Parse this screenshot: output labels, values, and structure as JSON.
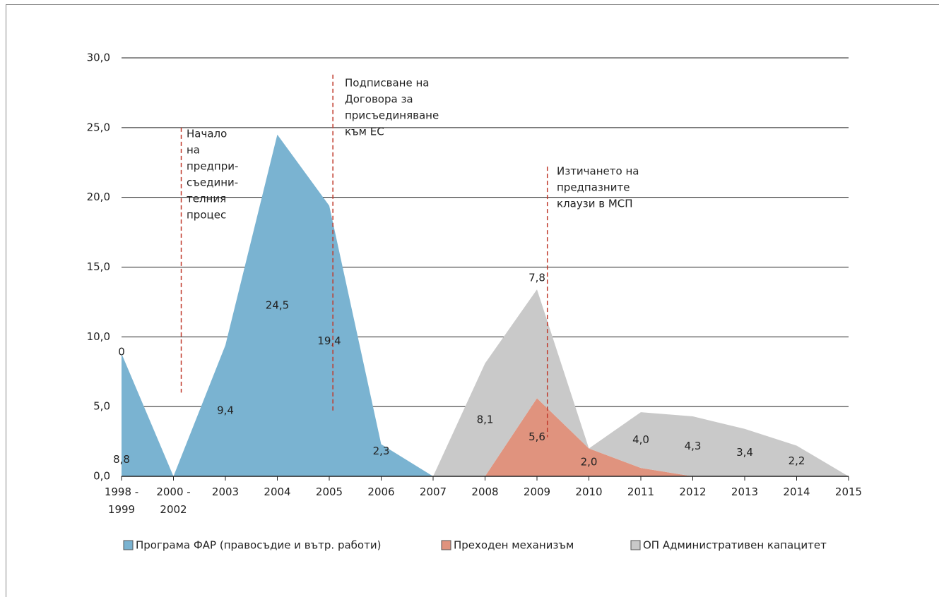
{
  "chart_data": {
    "type": "stacked_area",
    "categories": [
      "1998 -\n1999",
      "2000 -\n2002",
      "2003",
      "2004",
      "2005",
      "2006",
      "2007",
      "2008",
      "2009",
      "2010",
      "2011",
      "2012",
      "2013",
      "2014",
      "2015"
    ],
    "series": [
      {
        "name": "Програма ФАР (правосъдие и вътр. работи)",
        "color": "#7ab3d1",
        "values": [
          8.8,
          0,
          9.4,
          24.5,
          19.4,
          2.3,
          0,
          0,
          0,
          0,
          0,
          0,
          0,
          0,
          0
        ],
        "value_labels": [
          "8,8",
          null,
          "9,4",
          "24,5",
          "19,4",
          "2,3",
          null,
          null,
          null,
          null,
          null,
          null,
          null,
          null,
          null
        ]
      },
      {
        "name": "Преходен механизъм",
        "color": "#e0937e",
        "values": [
          0,
          0,
          0,
          0,
          0,
          0,
          0,
          0,
          5.6,
          2.0,
          0.6,
          0,
          0,
          0,
          0
        ],
        "value_labels": [
          "0",
          null,
          null,
          null,
          null,
          null,
          null,
          null,
          "5,6",
          "2,0",
          null,
          null,
          null,
          null,
          null
        ]
      },
      {
        "name": "ОП Административен капацитет",
        "color": "#c9c9c9",
        "values": [
          0,
          0,
          0,
          0,
          0,
          0,
          0,
          8.1,
          7.8,
          0,
          4.0,
          4.3,
          3.4,
          2.2,
          0
        ],
        "value_labels": [
          null,
          null,
          null,
          null,
          null,
          null,
          null,
          "8,1",
          "7,8",
          null,
          "4,0",
          "4,3",
          "3,4",
          "2,2",
          null
        ]
      }
    ],
    "ylim": [
      0,
      30
    ],
    "yticks": [
      {
        "value": 0,
        "label": "0,0"
      },
      {
        "value": 5,
        "label": "5,0"
      },
      {
        "value": 10,
        "label": "10,0"
      },
      {
        "value": 15,
        "label": "15,0"
      },
      {
        "value": 20,
        "label": "20,0"
      },
      {
        "value": 25,
        "label": "25,0"
      },
      {
        "value": 30,
        "label": "30,0"
      }
    ],
    "grid": true,
    "annotations": [
      [
        "Начало",
        "на",
        "предпри-",
        "съедини-",
        "телния",
        "процес"
      ],
      [
        "Подписване на",
        "Договора за",
        "присъединяване",
        "към ЕС"
      ],
      [
        "Изтичането на",
        "предпазните",
        "клаузи в МСП"
      ]
    ]
  }
}
